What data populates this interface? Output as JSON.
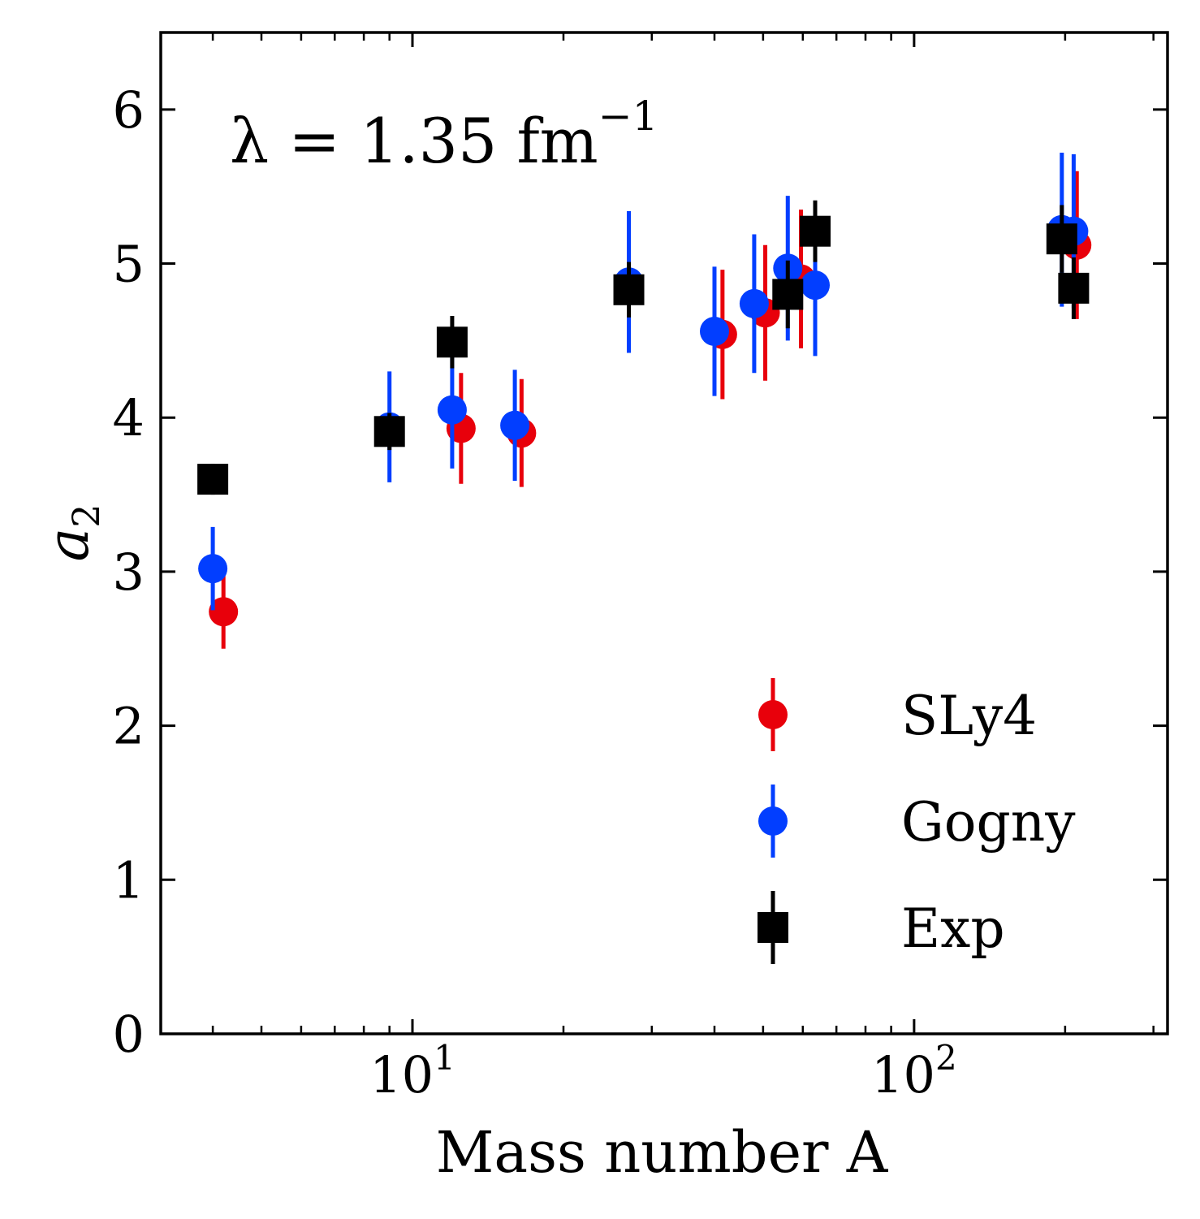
{
  "chart_data": {
    "type": "scatter",
    "xscale": "log",
    "xlim": [
      3.15,
      320
    ],
    "ylim": [
      0,
      6.5
    ],
    "xlabel": "Mass number A",
    "ylabel_italic": "a",
    "ylabel_sub": "2",
    "annotation": {
      "lhs": "λ = 1.35 fm",
      "sup": "−1"
    },
    "yticks": [
      0,
      1,
      2,
      3,
      4,
      5,
      6
    ],
    "ytick_labels": [
      "0",
      "1",
      "2",
      "3",
      "4",
      "5",
      "6"
    ],
    "xticks_major": [
      {
        "value": 10,
        "base": "10",
        "exp": "1"
      },
      {
        "value": 100,
        "base": "10",
        "exp": "2"
      }
    ],
    "xticks_minor": [
      4,
      5,
      6,
      7,
      8,
      9,
      20,
      30,
      40,
      50,
      60,
      70,
      80,
      90,
      200,
      300
    ],
    "legend_position": "lower-right",
    "series": [
      {
        "name": "SLy4",
        "color": "#e8000b",
        "marker": "circle",
        "points": [
          {
            "x": 4.2,
            "y": 2.74,
            "err": 0.24
          },
          {
            "x": 12.5,
            "y": 3.93,
            "err": 0.36
          },
          {
            "x": 16.5,
            "y": 3.9,
            "err": 0.35
          },
          {
            "x": 41.5,
            "y": 4.54,
            "err": 0.42
          },
          {
            "x": 50.5,
            "y": 4.68,
            "err": 0.44
          },
          {
            "x": 59.5,
            "y": 4.9,
            "err": 0.45
          },
          {
            "x": 211,
            "y": 5.12,
            "err": 0.48
          }
        ]
      },
      {
        "name": "Gogny",
        "color": "#023eff",
        "marker": "circle",
        "points": [
          {
            "x": 4.0,
            "y": 3.02,
            "err": 0.27
          },
          {
            "x": 9.0,
            "y": 3.94,
            "err": 0.36
          },
          {
            "x": 12.0,
            "y": 4.05,
            "err": 0.38
          },
          {
            "x": 16.0,
            "y": 3.95,
            "err": 0.36
          },
          {
            "x": 27.0,
            "y": 4.88,
            "err": 0.46
          },
          {
            "x": 40.0,
            "y": 4.56,
            "err": 0.42
          },
          {
            "x": 48.0,
            "y": 4.74,
            "err": 0.45
          },
          {
            "x": 56.0,
            "y": 4.97,
            "err": 0.47
          },
          {
            "x": 63.5,
            "y": 4.86,
            "err": 0.46
          },
          {
            "x": 197,
            "y": 5.22,
            "err": 0.5
          },
          {
            "x": 208,
            "y": 5.21,
            "err": 0.5
          }
        ]
      },
      {
        "name": "Exp",
        "color": "#000000",
        "marker": "square",
        "points": [
          {
            "x": 4.0,
            "y": 3.6,
            "err": 0.1
          },
          {
            "x": 9.0,
            "y": 3.91,
            "err": 0.12
          },
          {
            "x": 12.0,
            "y": 4.49,
            "err": 0.17
          },
          {
            "x": 27.0,
            "y": 4.83,
            "err": 0.18
          },
          {
            "x": 56.0,
            "y": 4.8,
            "err": 0.22
          },
          {
            "x": 63.5,
            "y": 5.21,
            "err": 0.2
          },
          {
            "x": 197,
            "y": 5.16,
            "err": 0.22
          },
          {
            "x": 208,
            "y": 4.84,
            "err": 0.2
          }
        ]
      }
    ]
  }
}
